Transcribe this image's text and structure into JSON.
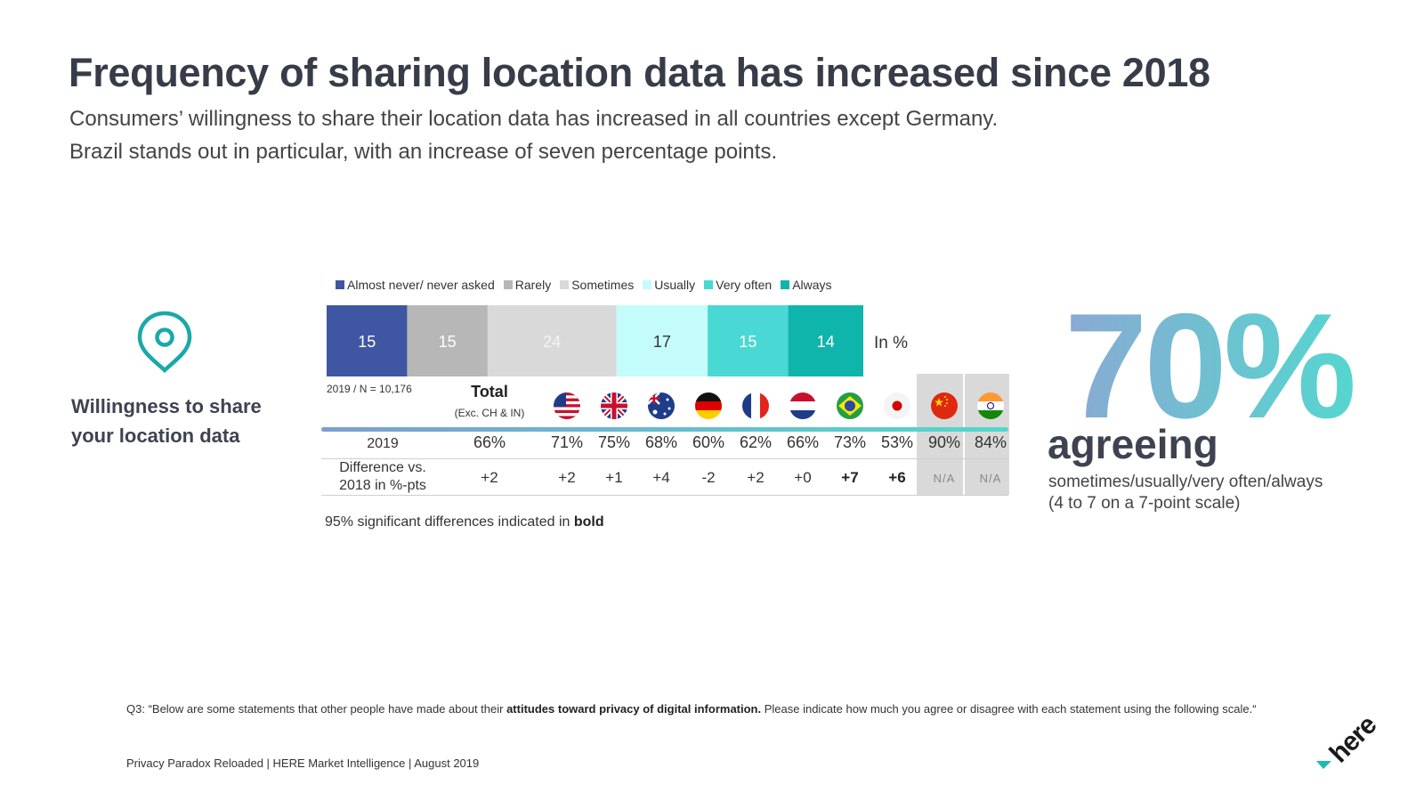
{
  "title": "Frequency of sharing location data has increased since 2018",
  "subtitle_line1": "Consumers’ willingness to share their location data has increased in all countries except Germany.",
  "subtitle_line2": "Brazil stands out in particular, with an increase of seven percentage points.",
  "side_label": "Willingness to share your location data",
  "chart_data": [
    {
      "type": "bar",
      "orientation": "horizontal-stacked",
      "unit": "In %",
      "series": [
        {
          "name": "Almost never/ never asked",
          "value": 15,
          "color": "#3f56a3"
        },
        {
          "name": "Rarely",
          "value": 15,
          "color": "#b7b7b7"
        },
        {
          "name": "Sometimes",
          "value": 24,
          "color": "#d9d9d9"
        },
        {
          "name": "Usually",
          "value": 17,
          "color": "#c4fbfb"
        },
        {
          "name": "Very often",
          "value": 15,
          "color": "#4ad8d4"
        },
        {
          "name": "Always",
          "value": 14,
          "color": "#0fb4ab"
        }
      ]
    },
    {
      "type": "table",
      "sample_label": "2019 / N = 10,176",
      "total_label": "Total",
      "total_sublabel": "(Exc. CH & IN)",
      "row_labels": [
        "2019",
        "Difference vs. 2018 in %-pts"
      ],
      "columns": [
        {
          "country": "Total",
          "flag": "",
          "value_2019": "66%",
          "diff": "+2",
          "significant": false
        },
        {
          "country": "USA",
          "flag": "us-flag-icon",
          "value_2019": "71%",
          "diff": "+2",
          "significant": false
        },
        {
          "country": "UK",
          "flag": "uk-flag-icon",
          "value_2019": "75%",
          "diff": "+1",
          "significant": false
        },
        {
          "country": "Australia",
          "flag": "australia-flag-icon",
          "value_2019": "68%",
          "diff": "+4",
          "significant": false
        },
        {
          "country": "Germany",
          "flag": "germany-flag-icon",
          "value_2019": "60%",
          "diff": "-2",
          "significant": false
        },
        {
          "country": "France",
          "flag": "france-flag-icon",
          "value_2019": "62%",
          "diff": "+2",
          "significant": false
        },
        {
          "country": "Netherlands",
          "flag": "netherlands-flag-icon",
          "value_2019": "66%",
          "diff": "+0",
          "significant": false
        },
        {
          "country": "Brazil",
          "flag": "brazil-flag-icon",
          "value_2019": "73%",
          "diff": "+7",
          "significant": true
        },
        {
          "country": "Japan",
          "flag": "japan-flag-icon",
          "value_2019": "53%",
          "diff": "+6",
          "significant": true
        },
        {
          "country": "China",
          "flag": "china-flag-icon",
          "value_2019": "90%",
          "diff": "N/A",
          "significant": false
        },
        {
          "country": "India",
          "flag": "india-flag-icon",
          "value_2019": "84%",
          "diff": "N/A",
          "significant": false
        }
      ]
    }
  ],
  "significance_note_pre": "95% significant differences indicated in ",
  "significance_note_bold": "bold",
  "headline_value": "70%",
  "headline_label": "agreeing",
  "headline_sub_line1": "sometimes/usually/very often/always",
  "headline_sub_line2": "(4 to 7 on a 7-point scale)",
  "question_pre": "Q3: “Below are some statements that other people have made about their ",
  "question_bold": "attitudes toward privacy of digital information.",
  "question_post": " Please indicate how much you agree or disagree with each statement using the following scale.“",
  "footer": "Privacy Paradox Reloaded | HERE Market Intelligence | August 2019",
  "logo_text": "here",
  "colors": {
    "title": "#363c48",
    "gradient_start": "#7d9ed0",
    "gradient_end": "#52d8cc",
    "pin": "#1aa8a8"
  }
}
